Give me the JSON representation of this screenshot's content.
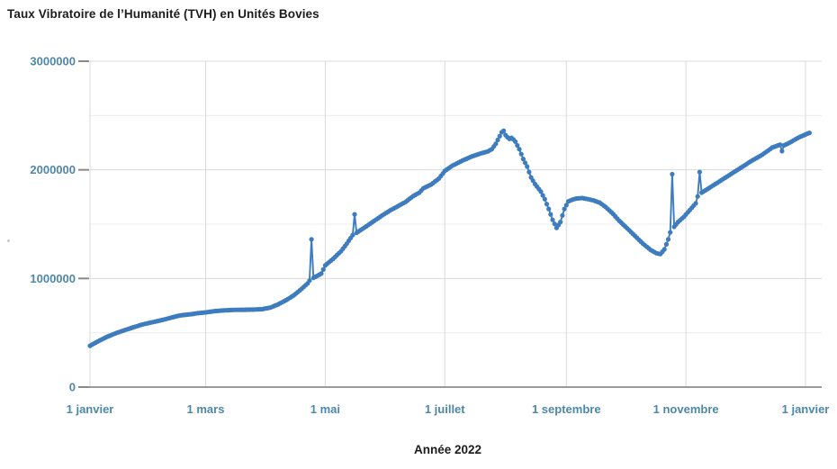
{
  "page": {
    "background": "#ffffff"
  },
  "colors": {
    "line": "#3d7cbe",
    "tick_label": "#4e87a8",
    "title_text": "#1c1c1c",
    "grid_major": "#d9d9d9",
    "grid_minor": "#ececec",
    "axis_line": "#9b9b9b",
    "tick_mark": "#8a8a8a",
    "background": "#ffffff"
  },
  "chart_data": {
    "type": "line",
    "title": "Taux Vibratoire de l’Humanité (TVH) en Unités Bovies",
    "xlabel": "Année 2022",
    "ylabel": "",
    "ylim": [
      0,
      3000000
    ],
    "xlim_days": [
      0,
      373
    ],
    "grid": true,
    "legend_position": "none",
    "marker_style": "filled-circle",
    "y_major_ticks": [
      0,
      1000000,
      2000000,
      3000000
    ],
    "y_minor_step": 500000,
    "x_ticks": [
      {
        "day": 0,
        "label": "1 janvier"
      },
      {
        "day": 59,
        "label": "1 mars"
      },
      {
        "day": 120,
        "label": "1 mai"
      },
      {
        "day": 181,
        "label": "1 juillet"
      },
      {
        "day": 243,
        "label": "1 septembre"
      },
      {
        "day": 304,
        "label": "1 novembre"
      },
      {
        "day": 365,
        "label": "1 janvier"
      }
    ],
    "series": [
      {
        "name": "TVH",
        "color": "#3d7cbe",
        "units": "Unités Bovies",
        "points": [
          [
            0,
            380000
          ],
          [
            2,
            400000
          ],
          [
            5,
            430000
          ],
          [
            9,
            465000
          ],
          [
            13,
            495000
          ],
          [
            17,
            520000
          ],
          [
            22,
            550000
          ],
          [
            27,
            578000
          ],
          [
            32,
            598000
          ],
          [
            37,
            618000
          ],
          [
            42,
            642000
          ],
          [
            46,
            660000
          ],
          [
            51,
            670000
          ],
          [
            55,
            680000
          ],
          [
            59,
            688000
          ],
          [
            64,
            700000
          ],
          [
            69,
            707000
          ],
          [
            74,
            711000
          ],
          [
            79,
            712000
          ],
          [
            84,
            714000
          ],
          [
            88,
            718000
          ],
          [
            92,
            732000
          ],
          [
            96,
            762000
          ],
          [
            100,
            800000
          ],
          [
            104,
            845000
          ],
          [
            108,
            905000
          ],
          [
            111,
            955000
          ],
          [
            112,
            980000
          ],
          [
            113,
            1360000
          ],
          [
            114,
            1005000
          ],
          [
            116,
            1025000
          ],
          [
            118,
            1045000
          ],
          [
            120,
            1120000
          ],
          [
            124,
            1180000
          ],
          [
            128,
            1250000
          ],
          [
            131,
            1320000
          ],
          [
            134,
            1400000
          ],
          [
            135,
            1590000
          ],
          [
            136,
            1420000
          ],
          [
            138,
            1445000
          ],
          [
            141,
            1480000
          ],
          [
            145,
            1530000
          ],
          [
            149,
            1580000
          ],
          [
            153,
            1625000
          ],
          [
            157,
            1665000
          ],
          [
            161,
            1705000
          ],
          [
            165,
            1760000
          ],
          [
            168,
            1790000
          ],
          [
            170,
            1830000
          ],
          [
            174,
            1865000
          ],
          [
            178,
            1920000
          ],
          [
            181,
            1990000
          ],
          [
            185,
            2040000
          ],
          [
            190,
            2085000
          ],
          [
            195,
            2125000
          ],
          [
            200,
            2155000
          ],
          [
            203,
            2170000
          ],
          [
            205,
            2190000
          ],
          [
            207,
            2240000
          ],
          [
            209,
            2310000
          ],
          [
            210,
            2345000
          ],
          [
            211,
            2360000
          ],
          [
            212,
            2320000
          ],
          [
            213,
            2300000
          ],
          [
            214,
            2285000
          ],
          [
            215,
            2295000
          ],
          [
            216,
            2280000
          ],
          [
            217,
            2260000
          ],
          [
            219,
            2190000
          ],
          [
            221,
            2100000
          ],
          [
            223,
            2030000
          ],
          [
            225,
            1930000
          ],
          [
            227,
            1870000
          ],
          [
            230,
            1800000
          ],
          [
            232,
            1730000
          ],
          [
            234,
            1640000
          ],
          [
            236,
            1540000
          ],
          [
            238,
            1465000
          ],
          [
            240,
            1520000
          ],
          [
            242,
            1640000
          ],
          [
            244,
            1710000
          ],
          [
            246,
            1725000
          ],
          [
            248,
            1735000
          ],
          [
            251,
            1740000
          ],
          [
            254,
            1730000
          ],
          [
            257,
            1718000
          ],
          [
            260,
            1698000
          ],
          [
            263,
            1658000
          ],
          [
            267,
            1592000
          ],
          [
            270,
            1530000
          ],
          [
            274,
            1462000
          ],
          [
            278,
            1392000
          ],
          [
            282,
            1322000
          ],
          [
            286,
            1262000
          ],
          [
            289,
            1232000
          ],
          [
            291,
            1225000
          ],
          [
            293,
            1268000
          ],
          [
            295,
            1360000
          ],
          [
            296,
            1425000
          ],
          [
            297,
            1960000
          ],
          [
            298,
            1475000
          ],
          [
            300,
            1520000
          ],
          [
            303,
            1568000
          ],
          [
            306,
            1630000
          ],
          [
            309,
            1692000
          ],
          [
            310,
            1755000
          ],
          [
            311,
            1980000
          ],
          [
            312,
            1790000
          ],
          [
            314,
            1812000
          ],
          [
            318,
            1858000
          ],
          [
            321,
            1892000
          ],
          [
            325,
            1938000
          ],
          [
            329,
            1985000
          ],
          [
            333,
            2030000
          ],
          [
            337,
            2078000
          ],
          [
            340,
            2108000
          ],
          [
            343,
            2140000
          ],
          [
            346,
            2178000
          ],
          [
            348,
            2205000
          ],
          [
            350,
            2218000
          ],
          [
            352,
            2232000
          ],
          [
            353,
            2172000
          ],
          [
            354,
            2225000
          ],
          [
            356,
            2242000
          ],
          [
            358,
            2262000
          ],
          [
            360,
            2282000
          ],
          [
            362,
            2302000
          ],
          [
            365,
            2325000
          ],
          [
            367,
            2340000
          ]
        ]
      }
    ]
  }
}
